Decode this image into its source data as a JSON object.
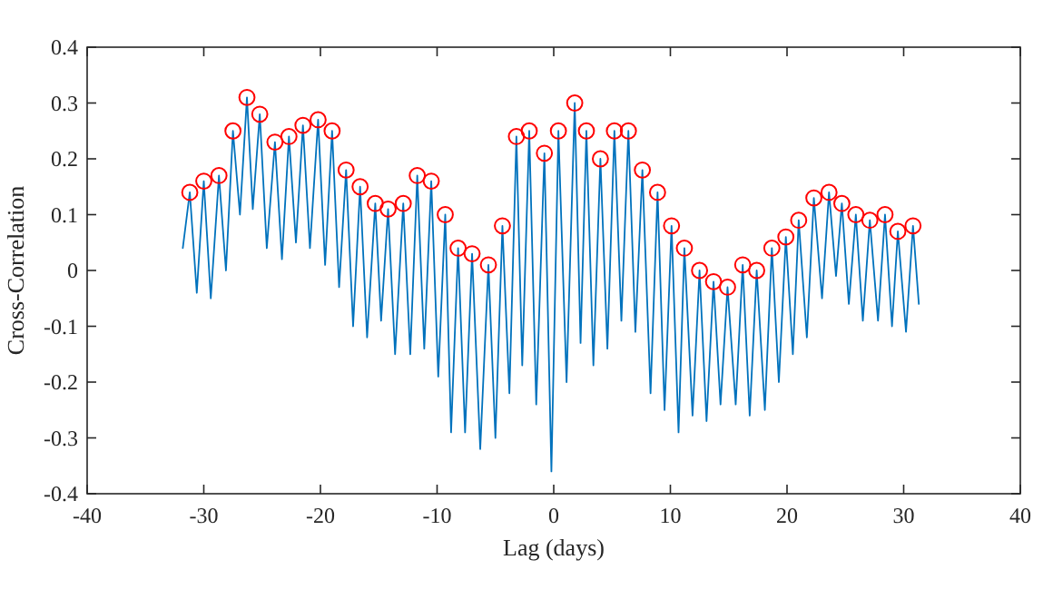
{
  "chart_data": {
    "type": "line",
    "xlabel": "Lag (days)",
    "ylabel": "Cross-Correlation",
    "xlim": [
      -40,
      40
    ],
    "ylim": [
      -0.4,
      0.4
    ],
    "xticks": [
      -40,
      -30,
      -20,
      -10,
      0,
      10,
      20,
      30,
      40
    ],
    "yticks": [
      -0.4,
      -0.3,
      -0.2,
      -0.1,
      0,
      0.1,
      0.2,
      0.3,
      0.4
    ],
    "grid": false,
    "line_style": "solid",
    "series": [
      {
        "color": "#0072bd",
        "marker": "none",
        "x": [
          -31.8,
          -31.2,
          -30.6,
          -30.0,
          -29.4,
          -28.7,
          -28.1,
          -27.5,
          -26.9,
          -26.3,
          -25.8,
          -25.2,
          -24.6,
          -23.9,
          -23.3,
          -22.7,
          -22.1,
          -21.5,
          -20.9,
          -20.2,
          -19.6,
          -19.0,
          -18.4,
          -17.8,
          -17.2,
          -16.6,
          -16.0,
          -15.3,
          -14.8,
          -14.2,
          -13.6,
          -12.9,
          -12.3,
          -11.7,
          -11.1,
          -10.5,
          -9.9,
          -9.3,
          -8.8,
          -8.2,
          -7.6,
          -7.0,
          -6.3,
          -5.6,
          -5.0,
          -4.4,
          -3.8,
          -3.2,
          -2.7,
          -2.1,
          -1.5,
          -0.8,
          -0.2,
          0.4,
          1.1,
          1.8,
          2.3,
          2.8,
          3.4,
          4.0,
          4.6,
          5.2,
          5.8,
          6.4,
          7.0,
          7.6,
          8.3,
          8.9,
          9.5,
          10.1,
          10.7,
          11.2,
          11.9,
          12.5,
          13.1,
          13.7,
          14.3,
          14.9,
          15.6,
          16.2,
          16.8,
          17.4,
          18.1,
          18.7,
          19.3,
          19.9,
          20.5,
          21.0,
          21.7,
          22.3,
          23.0,
          23.6,
          24.2,
          24.7,
          25.3,
          25.9,
          26.5,
          27.1,
          27.8,
          28.4,
          29.0,
          29.5,
          30.2,
          30.8,
          31.3
        ],
        "values": [
          0.04,
          0.14,
          -0.04,
          0.16,
          -0.05,
          0.17,
          0,
          0.25,
          0.1,
          0.31,
          0.11,
          0.28,
          0.04,
          0.23,
          0.02,
          0.24,
          0.05,
          0.26,
          0.04,
          0.27,
          0.01,
          0.25,
          -0.03,
          0.18,
          -0.1,
          0.15,
          -0.12,
          0.12,
          -0.09,
          0.11,
          -0.15,
          0.12,
          -0.15,
          0.17,
          -0.14,
          0.16,
          -0.19,
          0.1,
          -0.29,
          0.04,
          -0.29,
          0.03,
          -0.32,
          0.01,
          -0.3,
          0.08,
          -0.22,
          0.24,
          -0.17,
          0.25,
          -0.24,
          0.21,
          -0.36,
          0.25,
          -0.2,
          0.3,
          -0.13,
          0.25,
          -0.17,
          0.2,
          -0.14,
          0.25,
          -0.09,
          0.25,
          -0.11,
          0.18,
          -0.22,
          0.14,
          -0.25,
          0.08,
          -0.29,
          0.04,
          -0.26,
          0,
          -0.27,
          -0.02,
          -0.24,
          -0.03,
          -0.24,
          0.01,
          -0.26,
          0,
          -0.25,
          0.04,
          -0.2,
          0.06,
          -0.15,
          0.09,
          -0.12,
          0.13,
          -0.05,
          0.14,
          -0.01,
          0.12,
          -0.06,
          0.1,
          -0.09,
          0.09,
          -0.09,
          0.1,
          -0.1,
          0.07,
          -0.11,
          0.08,
          -0.06
        ]
      },
      {
        "type": "scatter",
        "color": "#ff0000",
        "marker": "circle",
        "x": [
          -31.2,
          -30.0,
          -28.7,
          -27.5,
          -26.3,
          -25.2,
          -23.9,
          -22.7,
          -21.5,
          -20.2,
          -19.0,
          -17.8,
          -16.6,
          -15.3,
          -14.2,
          -12.9,
          -11.7,
          -10.5,
          -9.3,
          -8.2,
          -7.0,
          -5.6,
          -4.4,
          -3.2,
          -2.1,
          -0.8,
          0.4,
          1.8,
          2.8,
          4.0,
          5.2,
          6.4,
          7.6,
          8.9,
          10.1,
          11.2,
          12.5,
          13.7,
          14.9,
          16.2,
          17.4,
          18.7,
          19.9,
          21.0,
          22.3,
          23.6,
          24.7,
          25.9,
          27.1,
          28.4,
          29.5,
          30.8
        ],
        "values": [
          0.14,
          0.16,
          0.17,
          0.25,
          0.31,
          0.28,
          0.23,
          0.24,
          0.26,
          0.27,
          0.25,
          0.18,
          0.15,
          0.12,
          0.11,
          0.12,
          0.17,
          0.16,
          0.1,
          0.04,
          0.03,
          0.01,
          0.08,
          0.24,
          0.25,
          0.21,
          0.25,
          0.3,
          0.25,
          0.2,
          0.25,
          0.25,
          0.18,
          0.14,
          0.08,
          0.04,
          0,
          -0.02,
          -0.03,
          0.01,
          0,
          0.04,
          0.06,
          0.09,
          0.13,
          0.14,
          0.12,
          0.1,
          0.09,
          0.1,
          0.07,
          0.08
        ]
      }
    ]
  }
}
